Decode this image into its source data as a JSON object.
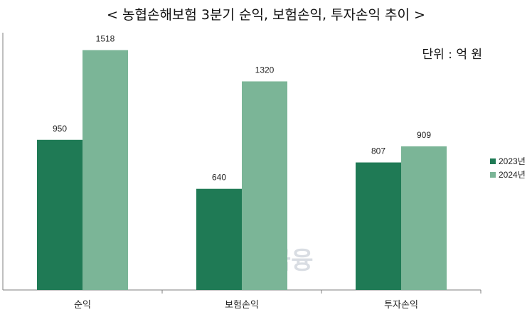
{
  "title": "< 농협손해보험 3분기 순익, 보험손익, 투자손익 추이 >",
  "unit_label": "단위 : 억 원",
  "watermark": "한국금융",
  "colors": {
    "series_2023": "#1f7a55",
    "series_2024": "#7bb597",
    "axis": "#7f7f7f"
  },
  "chart_data": {
    "type": "bar",
    "title": "< 농협손해보험 3분기 순익, 보험손익, 투자손익 추이 >",
    "categories": [
      "순익",
      "보험손익",
      "투자손익"
    ],
    "series": [
      {
        "name": "2023년",
        "values": [
          950,
          640,
          807
        ]
      },
      {
        "name": "2024년",
        "values": [
          1518,
          1320,
          909
        ]
      }
    ],
    "xlabel": "",
    "ylabel": "",
    "ylim": [
      0,
      1700
    ],
    "grid": false,
    "legend": "right",
    "data_labels": true
  }
}
